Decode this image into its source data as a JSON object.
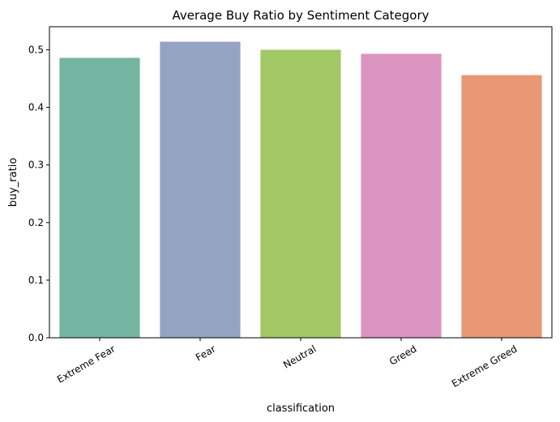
{
  "chart_data": {
    "type": "bar",
    "title": "Average Buy Ratio by Sentiment Category",
    "xlabel": "classification",
    "ylabel": "buy_ratio",
    "categories": [
      "Extreme Fear",
      "Fear",
      "Neutral",
      "Greed",
      "Extreme Greed"
    ],
    "values": [
      0.486,
      0.514,
      0.5,
      0.493,
      0.456
    ],
    "colors": [
      "#74b5a1",
      "#94a3c2",
      "#a2c866",
      "#db94c0",
      "#e89874"
    ],
    "ylim": [
      0,
      0.54
    ],
    "yticks": [
      "0.0",
      "0.1",
      "0.2",
      "0.3",
      "0.4",
      "0.5"
    ],
    "grid": false,
    "legend": "none"
  }
}
